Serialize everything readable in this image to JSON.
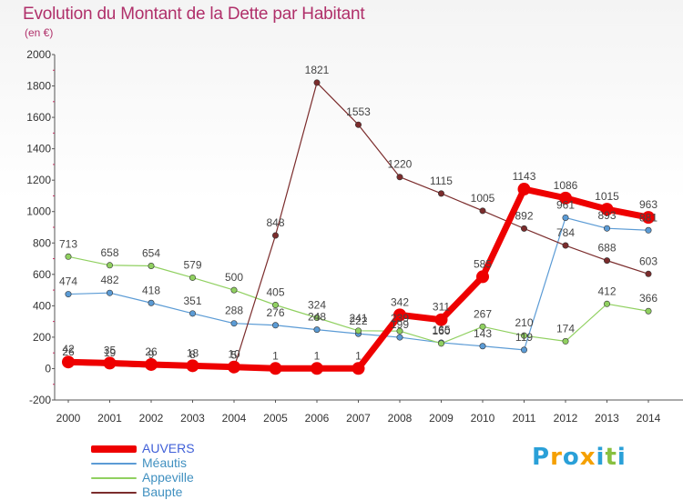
{
  "title": "Evolution du Montant de la Dette par Habitant",
  "subtitle": "(en €)",
  "logo": {
    "chars": [
      "P",
      "r",
      "o",
      "x",
      "i",
      "t",
      "i"
    ]
  },
  "colors": {
    "AUVERS": "#ee0000",
    "Méautis": "#5b9bd5",
    "Appeville": "#90d060",
    "Baupte": "#7b2c2c",
    "title": "#b0306a",
    "axis": "#555555"
  },
  "logo_colors": [
    "#2aa0d8",
    "#f5a000",
    "#2aa0d8",
    "#f5a000",
    "#2aa0d8",
    "#88c040",
    "#2aa0d8"
  ],
  "chart_data": {
    "type": "line",
    "title": "Evolution du Montant de la Dette par Habitant",
    "subtitle": "(en €)",
    "xlabel": "",
    "ylabel": "",
    "x": [
      "2000",
      "2001",
      "2002",
      "2003",
      "2004",
      "2005",
      "2006",
      "2007",
      "2008",
      "2009",
      "2010",
      "2011",
      "2012",
      "2013",
      "2014"
    ],
    "ylim": [
      -200,
      2000
    ],
    "yticks": [
      "-200",
      "0",
      "200",
      "400",
      "600",
      "800",
      "1000",
      "1200",
      "1400",
      "1600",
      "1800",
      "2000"
    ],
    "grid": false,
    "legend_position": "bottom-left",
    "series": [
      {
        "name": "AUVERS",
        "values": [
          42,
          35,
          26,
          18,
          10,
          1,
          1,
          1,
          342,
          311,
          585,
          1143,
          1086,
          1015,
          963
        ],
        "labels": [
          "42",
          "35",
          "26",
          "18",
          "10",
          "1",
          "1",
          "1",
          "342",
          "311",
          "585",
          "1143",
          "1086",
          "1015",
          "963"
        ]
      },
      {
        "name": "Méautis",
        "values": [
          474,
          482,
          418,
          351,
          288,
          276,
          248,
          222,
          199,
          165,
          143,
          119,
          961,
          893,
          881
        ],
        "labels": [
          "474",
          "482",
          "418",
          "351",
          "288",
          "276",
          "248",
          "222",
          "199",
          "165",
          "143",
          "119",
          "961",
          "893",
          "881"
        ]
      },
      {
        "name": "Appeville",
        "values": [
          713,
          658,
          654,
          579,
          500,
          405,
          324,
          241,
          239,
          160,
          267,
          210,
          174,
          412,
          366
        ],
        "labels": [
          "713",
          "658",
          "654",
          "579",
          "500",
          "405",
          "324",
          "241",
          "239",
          "160",
          "267",
          "210",
          "174",
          "412",
          "366"
        ]
      },
      {
        "name": "Baupte",
        "values": [
          26,
          19,
          9,
          8,
          5,
          848,
          1821,
          1553,
          1220,
          1115,
          1005,
          892,
          784,
          688,
          603
        ],
        "labels": [
          "26",
          "19",
          "9",
          "8",
          "5",
          "848",
          "1821",
          "1553",
          "1220",
          "1115",
          "1005",
          "892",
          "784",
          "688",
          "603"
        ]
      }
    ]
  }
}
